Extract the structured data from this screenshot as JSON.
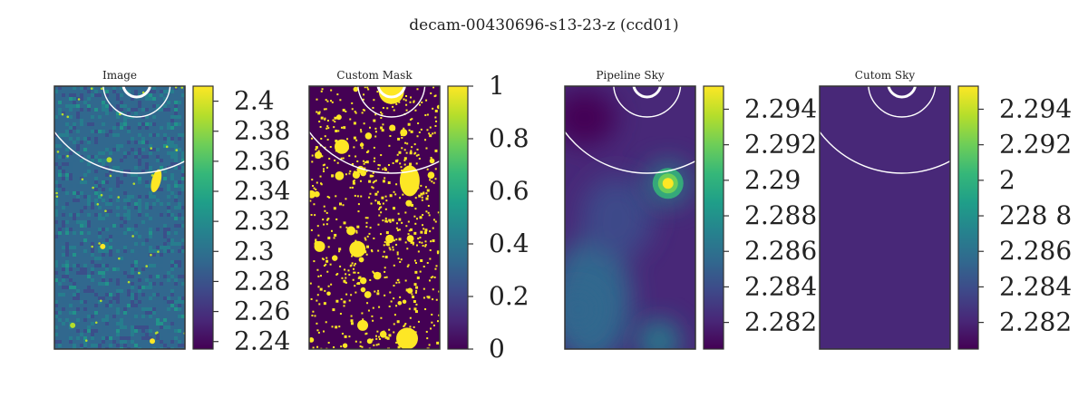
{
  "figure": {
    "title": "decam-00430696-s13-23-z (ccd01)"
  },
  "colors": {
    "viridis": [
      "#440154",
      "#482878",
      "#3e4989",
      "#31688e",
      "#26828e",
      "#1f9e89",
      "#35b779",
      "#6ece58",
      "#b5de2b",
      "#fde725"
    ],
    "frame": "#333333",
    "circle": "#ffffff"
  },
  "chart_data": [
    {
      "type": "heatmap",
      "title": "Image",
      "colorbar": {
        "ticks": [
          "2.4",
          "2.38",
          "2.36",
          "2.34",
          "2.32",
          "2.3",
          "2.28",
          "2.26",
          "2.24"
        ],
        "range": [
          2.235,
          2.41
        ]
      },
      "background_level": 0.35,
      "sources": [
        {
          "x": 0.78,
          "y": 0.36,
          "level": 1.0
        },
        {
          "x": 0.37,
          "y": 0.61,
          "level": 1.0
        },
        {
          "x": 0.75,
          "y": 0.97,
          "level": 1.0
        },
        {
          "x": 0.42,
          "y": 0.28,
          "level": 0.9
        },
        {
          "x": 0.14,
          "y": 0.91,
          "level": 0.9
        }
      ]
    },
    {
      "type": "heatmap",
      "title": "Custom Mask",
      "colorbar": {
        "ticks": [
          "1",
          "0.8",
          "0.6",
          "0.4",
          "0.2",
          "0"
        ],
        "range": [
          0,
          1
        ]
      },
      "background_level": 0.0,
      "sources": [
        {
          "x": 0.63,
          "y": 0.02,
          "level": 1.0
        },
        {
          "x": 0.77,
          "y": 0.36,
          "level": 1.0
        },
        {
          "x": 0.25,
          "y": 0.23,
          "level": 1.0
        },
        {
          "x": 0.37,
          "y": 0.62,
          "level": 1.0
        },
        {
          "x": 0.75,
          "y": 0.96,
          "level": 1.0
        },
        {
          "x": 0.08,
          "y": 0.61,
          "level": 1.0
        },
        {
          "x": 0.41,
          "y": 0.91,
          "level": 1.0
        },
        {
          "x": 0.32,
          "y": 0.55,
          "level": 1.0
        }
      ]
    },
    {
      "type": "heatmap",
      "title": "Pipeline Sky",
      "colorbar": {
        "ticks": [
          "2.294",
          "2.292",
          "2.29",
          "2.288",
          "2.286",
          "2.284",
          "2.282"
        ],
        "range": [
          2.2805,
          2.2953
        ]
      },
      "background_level": 0.1,
      "sources": [
        {
          "x": 0.79,
          "y": 0.37,
          "level": 1.0
        },
        {
          "x": 0.72,
          "y": 0.97,
          "level": 0.45
        },
        {
          "x": 0.1,
          "y": 0.85,
          "level": 0.3
        }
      ]
    },
    {
      "type": "heatmap",
      "title": "Cutom Sky",
      "colorbar": {
        "ticks": [
          "2.294",
          "2.292",
          "2",
          "228  8",
          "2.286",
          "2.284",
          "2.282"
        ],
        "range": [
          2.2805,
          2.2953
        ]
      },
      "background_level": 0.08,
      "sources": []
    }
  ]
}
